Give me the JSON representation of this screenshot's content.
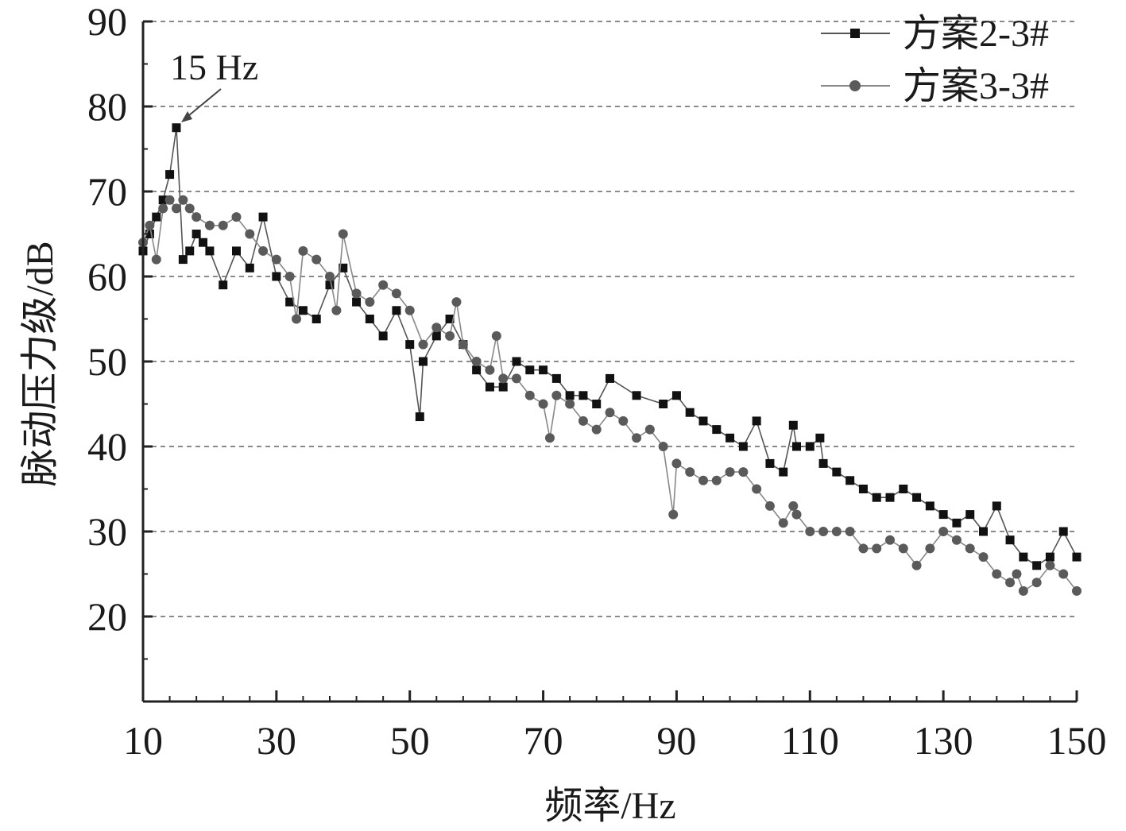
{
  "chart_data": {
    "type": "line",
    "xlabel": "频率/Hz",
    "ylabel": "脉动压力级/dB",
    "xlim": [
      10,
      150
    ],
    "ylim": [
      10,
      90
    ],
    "xticks": [
      "10",
      "30",
      "50",
      "70",
      "90",
      "110",
      "130",
      "150"
    ],
    "yticks": [
      "20",
      "30",
      "40",
      "50",
      "60",
      "70",
      "80",
      "90"
    ],
    "grid": "horizontal dashed",
    "legend_position": "top-right",
    "annotation": {
      "text": "15 Hz",
      "x": 15,
      "y": 77.5
    },
    "series": [
      {
        "name": "方案2-3#",
        "color": "#111111",
        "marker": "square",
        "x": [
          10,
          11,
          12,
          13,
          14,
          15,
          16,
          17,
          18,
          19,
          20,
          22,
          24,
          26,
          28,
          30,
          32,
          34,
          36,
          38,
          40,
          42,
          44,
          46,
          48,
          50,
          51.5,
          52,
          54,
          56,
          58,
          60,
          62,
          64,
          66,
          68,
          70,
          72,
          74,
          76,
          78,
          80,
          84,
          88,
          90,
          92,
          94,
          96,
          98,
          100,
          102,
          104,
          106,
          107.5,
          108,
          110,
          111.5,
          112,
          114,
          116,
          118,
          120,
          122,
          124,
          126,
          128,
          130,
          132,
          134,
          136,
          138,
          140,
          142,
          144,
          146,
          148,
          150
        ],
        "y": [
          63,
          65,
          67,
          69,
          72,
          77.5,
          62,
          63,
          65,
          64,
          63,
          59,
          63,
          61,
          67,
          60,
          57,
          56,
          55,
          59,
          61,
          57,
          55,
          53,
          56,
          52,
          43.5,
          50,
          53,
          55,
          52,
          49,
          47,
          47,
          50,
          49,
          49,
          48,
          46,
          46,
          45,
          48,
          46,
          45,
          46,
          44,
          43,
          42,
          41,
          40,
          43,
          38,
          37,
          42.5,
          40,
          40,
          41,
          38,
          37,
          36,
          35,
          34,
          34,
          35,
          34,
          33,
          32,
          31,
          32,
          30,
          33,
          29,
          27,
          26,
          27,
          30,
          27
        ]
      },
      {
        "name": "方案3-3#",
        "color": "#5a5a5a",
        "marker": "circle",
        "x": [
          10,
          11,
          12,
          13,
          14,
          15,
          16,
          17,
          18,
          20,
          22,
          24,
          26,
          28,
          30,
          32,
          33,
          34,
          36,
          38,
          39,
          40,
          42,
          44,
          46,
          48,
          50,
          52,
          54,
          56,
          57,
          58,
          60,
          62,
          63,
          64,
          66,
          68,
          70,
          71,
          72,
          74,
          76,
          78,
          80,
          82,
          84,
          86,
          88,
          89.5,
          90,
          92,
          94,
          96,
          98,
          100,
          102,
          104,
          106,
          107.5,
          108,
          110,
          112,
          114,
          116,
          118,
          120,
          122,
          124,
          126,
          128,
          130,
          132,
          134,
          136,
          138,
          140,
          141,
          142,
          144,
          146,
          148,
          150
        ],
        "y": [
          64,
          66,
          62,
          68,
          69,
          68,
          69,
          68,
          67,
          66,
          66,
          67,
          65,
          63,
          62,
          60,
          55,
          63,
          62,
          60,
          56,
          65,
          58,
          57,
          59,
          58,
          56,
          52,
          54,
          53,
          57,
          52,
          50,
          49,
          53,
          48,
          48,
          46,
          45,
          41,
          46,
          45,
          43,
          42,
          44,
          43,
          41,
          42,
          40,
          32,
          38,
          37,
          36,
          36,
          37,
          37,
          35,
          33,
          31,
          33,
          32,
          30,
          30,
          30,
          30,
          28,
          28,
          29,
          28,
          26,
          28,
          30,
          29,
          28,
          27,
          25,
          24,
          25,
          23,
          24,
          26,
          25,
          23
        ]
      }
    ]
  }
}
